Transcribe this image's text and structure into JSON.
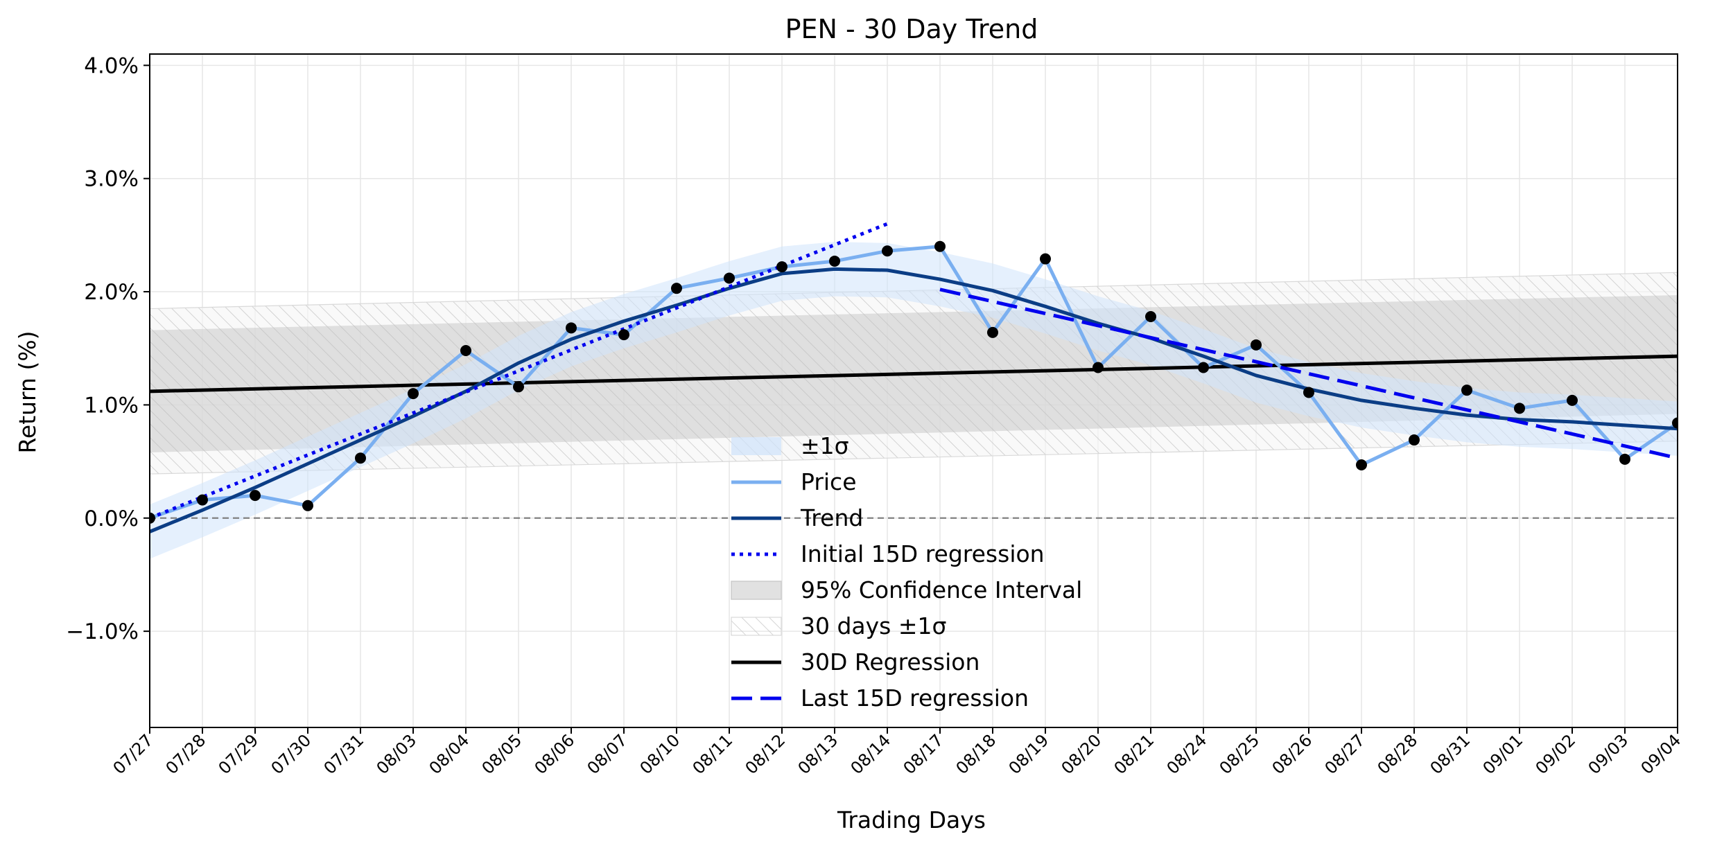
{
  "chart_data": {
    "type": "line",
    "title": "PEN - 30 Day Trend",
    "xlabel": "Trading Days",
    "ylabel": "Return (%)",
    "x": [
      "07/27",
      "07/28",
      "07/29",
      "07/30",
      "07/31",
      "08/03",
      "08/04",
      "08/05",
      "08/06",
      "08/07",
      "08/10",
      "08/11",
      "08/12",
      "08/13",
      "08/14",
      "08/17",
      "08/18",
      "08/19",
      "08/20",
      "08/21",
      "08/24",
      "08/25",
      "08/26",
      "08/27",
      "08/28",
      "08/31",
      "09/01",
      "09/02",
      "09/03",
      "09/04"
    ],
    "yticks": [
      "−1.0%",
      "0.0%",
      "1.0%",
      "2.0%",
      "3.0%",
      "4.0%"
    ],
    "ytick_values": [
      -1,
      0,
      1,
      2,
      3,
      4
    ],
    "ylim": [
      -1.85,
      4.1
    ],
    "grid": true,
    "legend_position": "lower-center",
    "series": [
      {
        "name": "Price",
        "color": "#7aaff0",
        "style": "solid-markers",
        "values": [
          0.0,
          0.16,
          0.2,
          0.11,
          0.53,
          1.1,
          1.48,
          1.16,
          1.68,
          1.62,
          2.03,
          2.12,
          2.22,
          2.27,
          2.36,
          2.4,
          1.64,
          2.29,
          1.33,
          1.78,
          1.33,
          1.53,
          1.11,
          0.47,
          0.69,
          1.13,
          0.97,
          1.04,
          0.52,
          0.84
        ]
      },
      {
        "name": "Trend",
        "color": "#0b3d85",
        "style": "solid",
        "values": [
          -0.12,
          0.07,
          0.27,
          0.48,
          0.69,
          0.9,
          1.12,
          1.37,
          1.58,
          1.74,
          1.88,
          2.03,
          2.16,
          2.2,
          2.19,
          2.11,
          2.01,
          1.87,
          1.72,
          1.59,
          1.43,
          1.26,
          1.14,
          1.04,
          0.97,
          0.91,
          0.87,
          0.85,
          0.82,
          0.79
        ]
      },
      {
        "name": "±1σ",
        "color": "#cfe3fb",
        "style": "band",
        "half_width": 0.24
      },
      {
        "name": "Initial 15D regression",
        "color": "#0000ee",
        "style": "dotted",
        "start": [
          0,
          0.0
        ],
        "end": [
          14,
          2.6
        ]
      },
      {
        "name": "95% Confidence Interval",
        "color": "#bdbdbd",
        "style": "band",
        "lower_start": 0.58,
        "lower_end": 0.92,
        "upper_start": 1.66,
        "upper_end": 1.97
      },
      {
        "name": "30 days ±1σ",
        "color": "#d0d0d0",
        "style": "hatched-band",
        "lower_start": 0.39,
        "lower_end": 0.68,
        "upper_start": 1.85,
        "upper_end": 2.17
      },
      {
        "name": "30D Regression",
        "color": "#000000",
        "style": "solid",
        "start": [
          0,
          1.12
        ],
        "end": [
          29,
          1.43
        ]
      },
      {
        "name": "Last 15D regression",
        "color": "#0000ee",
        "style": "dashed",
        "start": [
          15,
          2.02
        ],
        "end": [
          29,
          0.53
        ]
      }
    ],
    "reference_line": {
      "y": 0.0,
      "color": "#808080",
      "style": "dashed"
    }
  }
}
